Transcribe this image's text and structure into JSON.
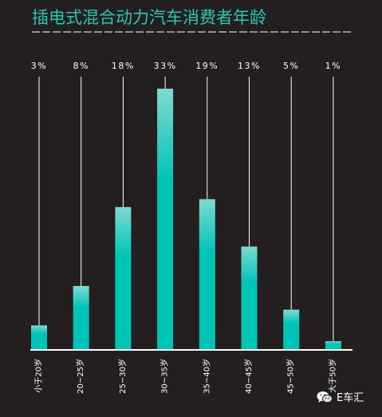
{
  "chart_data": {
    "type": "bar",
    "title": "插电式混合动力汽车消费者年龄",
    "categories": [
      "小于20岁",
      "20~25岁",
      "25~30岁",
      "30~35岁",
      "35~40岁",
      "40~45岁",
      "45~50岁",
      "大于50岁"
    ],
    "values": [
      3,
      8,
      18,
      33,
      19,
      13,
      5,
      1
    ],
    "value_labels": [
      "3%",
      "8%",
      "18%",
      "33%",
      "19%",
      "13%",
      "5%",
      "1%"
    ],
    "unit": "%",
    "xlabel": "",
    "ylabel": "",
    "ylim": [
      0,
      33
    ],
    "grid": false,
    "legend": "none",
    "bar_gradient": {
      "top": "#7fd9d2",
      "bottom": "#00c4b6"
    },
    "colors": {
      "background": "#231f20",
      "title": "#2ec4b6",
      "text": "#ffffff",
      "axis": "#ffffff"
    }
  },
  "watermark": {
    "icon": "wechat-icon",
    "text": "E车汇"
  }
}
